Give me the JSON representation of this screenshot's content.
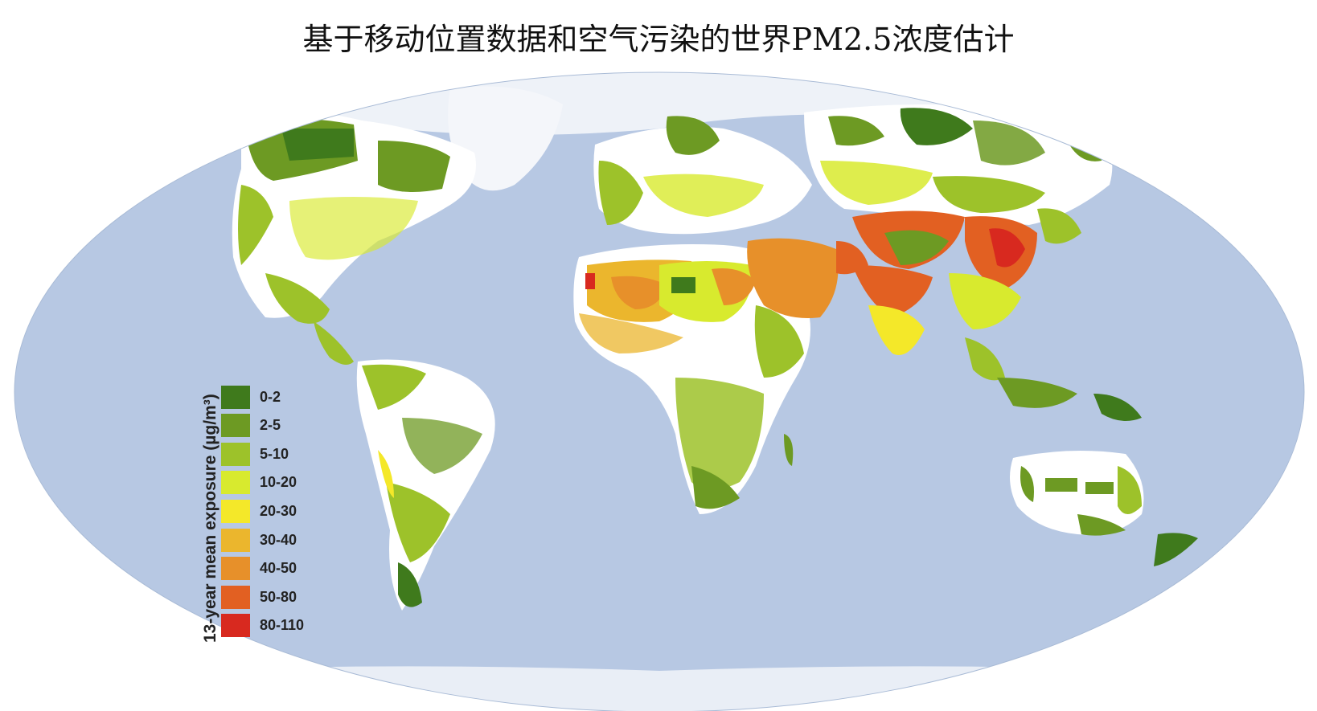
{
  "title": "基于移动位置数据和空气污染的世界PM2.5浓度估计",
  "legend": {
    "title": "13-year mean exposure (µg/m³)",
    "items": [
      {
        "label": "0-2",
        "color": "#3f7a1c"
      },
      {
        "label": "2-5",
        "color": "#6d9a23"
      },
      {
        "label": "5-10",
        "color": "#9dc22a"
      },
      {
        "label": "10-20",
        "color": "#d8ea2e"
      },
      {
        "label": "20-30",
        "color": "#f4e829"
      },
      {
        "label": "30-40",
        "color": "#ebb62d"
      },
      {
        "label": "40-50",
        "color": "#e7902a"
      },
      {
        "label": "50-80",
        "color": "#e26022"
      },
      {
        "label": "80-110",
        "color": "#d8291f"
      }
    ]
  },
  "colors": {
    "ocean": "#b7c8e3",
    "ice": "#eef2f8",
    "nodata_land": "#ffffff"
  }
}
